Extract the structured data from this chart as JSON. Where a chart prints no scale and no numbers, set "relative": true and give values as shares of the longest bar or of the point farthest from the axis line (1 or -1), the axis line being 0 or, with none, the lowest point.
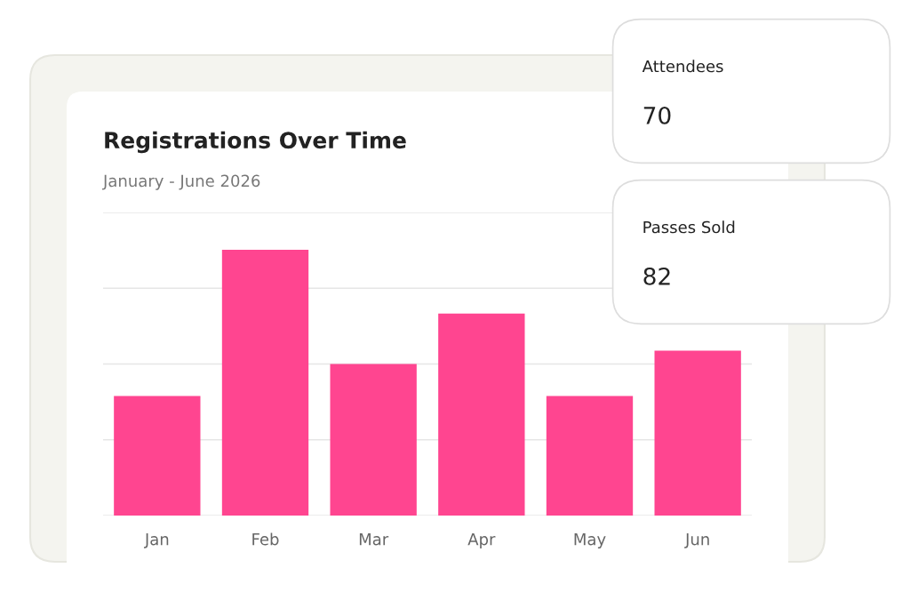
{
  "chart_data": [
    {
      "type": "bar",
      "title": "Registrations Over Time",
      "subtitle": "January - June 2026",
      "relative": true,
      "grid": "y",
      "categories": [
        "Jan",
        "Feb",
        "Mar",
        "Apr",
        "May",
        "Jun"
      ],
      "values": [
        0.45,
        1,
        0.57,
        0.76,
        0.45,
        0.62
      ],
      "color": "#ff4590"
    },
    {
      "type": "other",
      "title": "Attendees",
      "annotations": [
        "70"
      ]
    },
    {
      "type": "other",
      "title": "Passes Sold",
      "annotations": [
        "82"
      ]
    }
  ]
}
